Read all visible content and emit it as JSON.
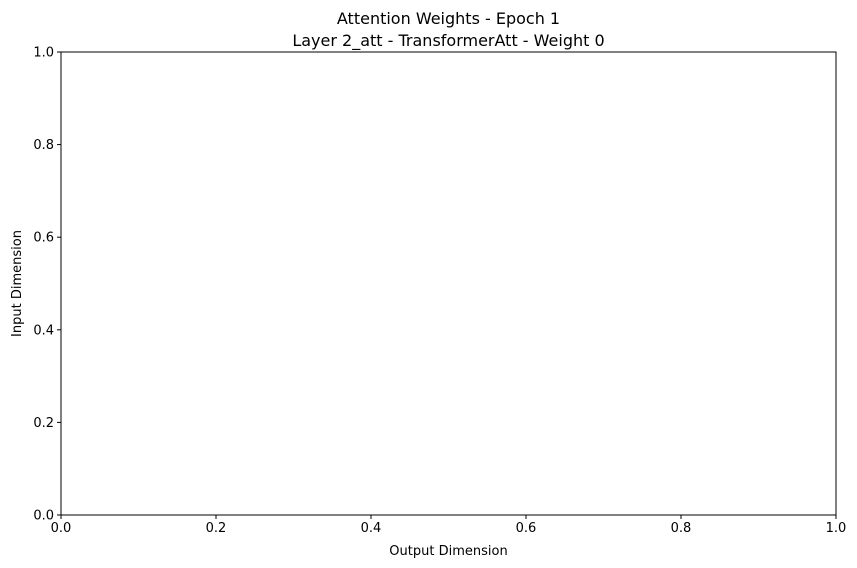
{
  "chart_data": {
    "type": "heatmap",
    "title_line1": "Attention Weights - Epoch 1",
    "title_line2": "Layer 2_att - TransformerAtt - Weight 0",
    "xlabel": "Output Dimension",
    "ylabel": "Input Dimension",
    "xlim": [
      0.0,
      1.0
    ],
    "ylim": [
      0.0,
      1.0
    ],
    "xticks": [
      "0.0",
      "0.2",
      "0.4",
      "0.6",
      "0.8",
      "1.0"
    ],
    "yticks": [
      "0.0",
      "0.2",
      "0.4",
      "0.6",
      "0.8",
      "1.0"
    ],
    "grid": false,
    "values": []
  }
}
